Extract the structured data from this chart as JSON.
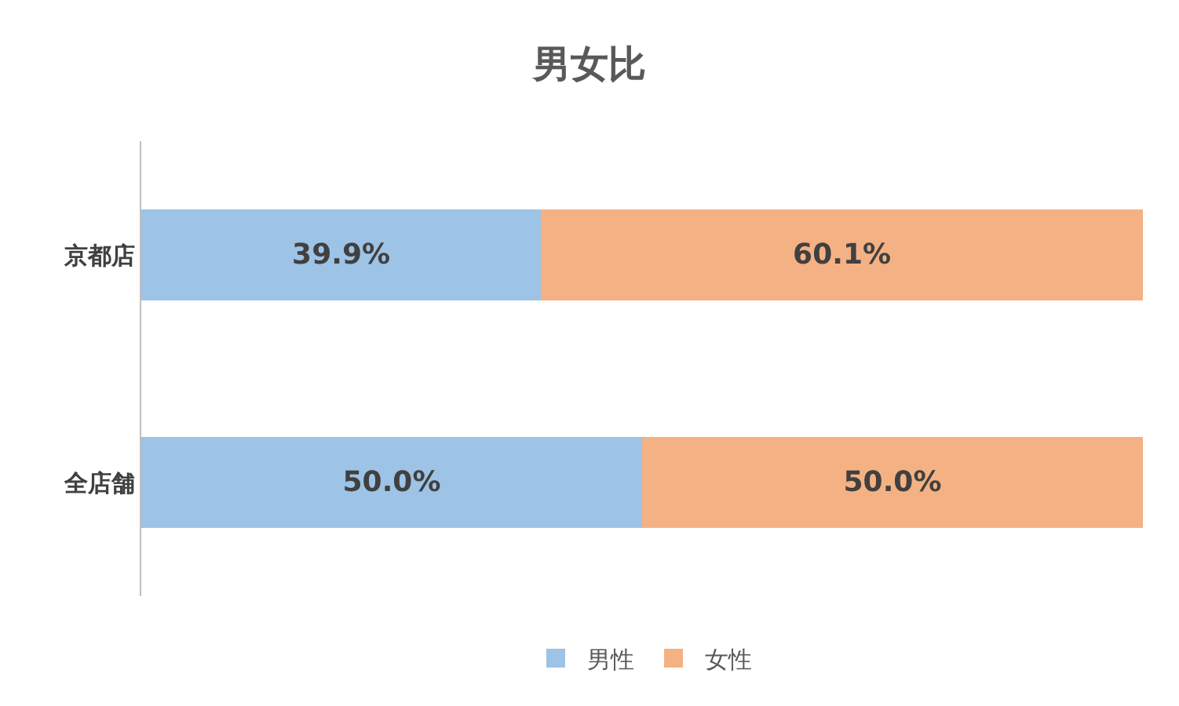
{
  "chart_data": {
    "type": "bar",
    "title": "男女比",
    "orientation": "horizontal",
    "stacked": true,
    "categories": [
      "京都店",
      "全店舗"
    ],
    "series": [
      {
        "name": "男性",
        "color": "#9dc3e6",
        "values": [
          39.9,
          50.0
        ],
        "value_labels": [
          "39.9%",
          "50.0%"
        ]
      },
      {
        "name": "女性",
        "color": "#f4b183",
        "values": [
          60.1,
          50.0
        ],
        "value_labels": [
          "60.1%",
          "50.0%"
        ]
      }
    ],
    "legend": "bottom",
    "grid": false
  }
}
